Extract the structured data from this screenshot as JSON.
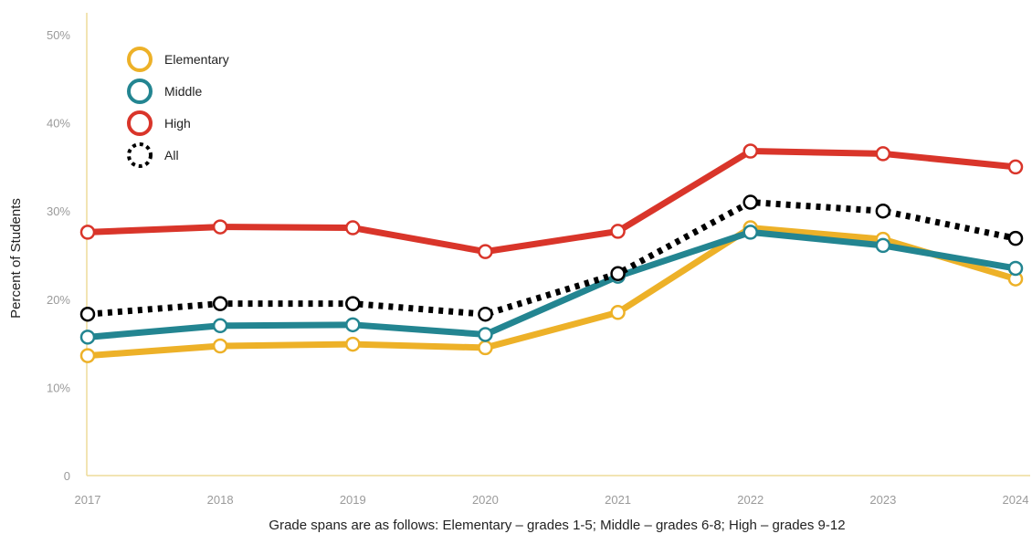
{
  "chart_data": {
    "type": "line",
    "ylabel": "Percent of Students",
    "note": "Grade spans are as follows: Elementary – grades 1-5; Middle – grades 6-8; High – grades 9-12",
    "ylim": [
      0,
      50
    ],
    "y_ticks": [
      {
        "value": 0,
        "label": "0"
      },
      {
        "value": 10,
        "label": "10%"
      },
      {
        "value": 20,
        "label": "20%"
      },
      {
        "value": 30,
        "label": "30%"
      },
      {
        "value": 40,
        "label": "40%"
      },
      {
        "value": 50,
        "label": "50%"
      }
    ],
    "categories": [
      "2017",
      "2018",
      "2019",
      "2020",
      "2021",
      "2022",
      "2023",
      "2024"
    ],
    "grid": false,
    "legend_position": "top-left",
    "series": [
      {
        "name": "Elementary",
        "color": "#EDB128",
        "style": "solid",
        "values": [
          13.6,
          14.7,
          14.9,
          14.5,
          18.5,
          28.1,
          26.8,
          22.3
        ]
      },
      {
        "name": "Middle",
        "color": "#238591",
        "style": "solid",
        "values": [
          15.7,
          17.0,
          17.1,
          16.0,
          22.6,
          27.6,
          26.1,
          23.5
        ]
      },
      {
        "name": "High",
        "color": "#D9352A",
        "style": "solid",
        "values": [
          27.6,
          28.2,
          28.1,
          25.4,
          27.7,
          36.8,
          36.5,
          35.0
        ]
      },
      {
        "name": "All",
        "color": "#000000",
        "style": "dotted",
        "values": [
          18.3,
          19.5,
          19.5,
          18.3,
          22.9,
          31.0,
          30.0,
          26.9
        ]
      }
    ]
  }
}
